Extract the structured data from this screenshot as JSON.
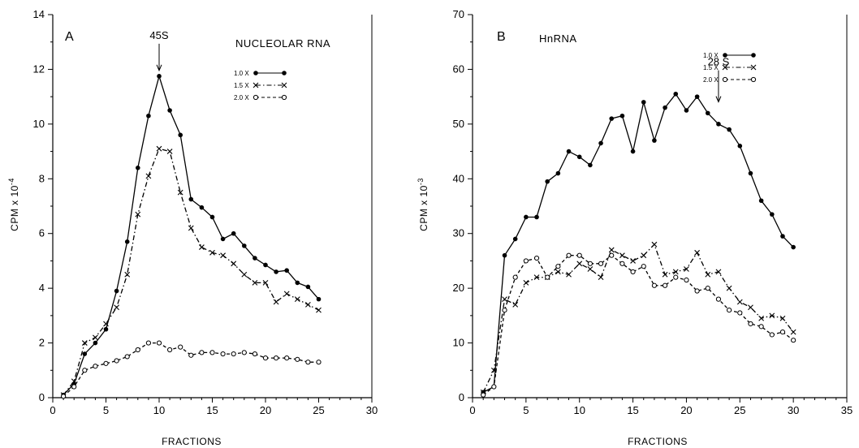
{
  "chart_data": [
    {
      "type": "line",
      "panel_label": "A",
      "title": "NUCLEOLAR RNA",
      "xlabel": "FRACTIONS",
      "ylabel": "CPM x 10",
      "ylabel_exponent": "-4",
      "xlim": [
        0,
        30
      ],
      "ylim": [
        0,
        14
      ],
      "x_ticks": [
        "0",
        "5",
        "10",
        "15",
        "20",
        "25",
        "30"
      ],
      "y_ticks": [
        "0",
        "2",
        "4",
        "6",
        "8",
        "10",
        "12",
        "14"
      ],
      "grid": false,
      "legend_position": "top-right",
      "annotation": {
        "text": "45S",
        "x": 10,
        "y": 11.75
      },
      "series": [
        {
          "name": "1.0 X",
          "marker": "filled-circle",
          "line_style": "solid",
          "x": [
            1,
            2,
            3,
            4,
            5,
            6,
            7,
            8,
            9,
            10,
            11,
            12,
            13,
            14,
            15,
            16,
            17,
            18,
            19,
            20,
            21,
            22,
            23,
            24,
            25
          ],
          "y": [
            0.1,
            0.5,
            1.6,
            2.0,
            2.5,
            3.9,
            5.7,
            8.4,
            10.3,
            11.75,
            10.5,
            9.6,
            7.25,
            6.95,
            6.6,
            5.8,
            6.0,
            5.55,
            5.1,
            4.85,
            4.6,
            4.65,
            4.2,
            4.05,
            3.6
          ]
        },
        {
          "name": "1.5 X",
          "marker": "x",
          "line_style": "dash-dot",
          "x": [
            1,
            2,
            3,
            4,
            5,
            6,
            7,
            8,
            9,
            10,
            11,
            12,
            13,
            14,
            15,
            16,
            17,
            18,
            19,
            20,
            21,
            22,
            23,
            24,
            25
          ],
          "y": [
            0.1,
            0.6,
            2.0,
            2.2,
            2.7,
            3.3,
            4.5,
            6.7,
            8.1,
            9.1,
            9.0,
            7.5,
            6.2,
            5.5,
            5.3,
            5.2,
            4.9,
            4.5,
            4.2,
            4.2,
            3.5,
            3.8,
            3.6,
            3.4,
            3.2
          ]
        },
        {
          "name": "2.0 X",
          "marker": "open-circle",
          "line_style": "dashed",
          "x": [
            1,
            2,
            3,
            4,
            5,
            6,
            7,
            8,
            9,
            10,
            11,
            12,
            13,
            14,
            15,
            16,
            17,
            18,
            19,
            20,
            21,
            22,
            23,
            24,
            25
          ],
          "y": [
            0.05,
            0.4,
            1.0,
            1.15,
            1.25,
            1.35,
            1.5,
            1.75,
            2.0,
            2.0,
            1.75,
            1.85,
            1.55,
            1.65,
            1.65,
            1.6,
            1.6,
            1.65,
            1.6,
            1.45,
            1.45,
            1.45,
            1.4,
            1.3,
            1.3
          ]
        }
      ]
    },
    {
      "type": "line",
      "panel_label": "B",
      "title": "HnRNA",
      "xlabel": "FRACTIONS",
      "ylabel": "CPM x 10",
      "ylabel_exponent": "-3",
      "xlim": [
        0,
        35
      ],
      "ylim": [
        0,
        70
      ],
      "x_ticks": [
        "0",
        "5",
        "10",
        "15",
        "20",
        "25",
        "30",
        "35"
      ],
      "y_ticks": [
        "0",
        "10",
        "20",
        "30",
        "40",
        "50",
        "60",
        "70"
      ],
      "grid": false,
      "legend_position": "top-right",
      "annotation": {
        "text": "28 S",
        "x": 23,
        "y": 53
      },
      "series": [
        {
          "name": "1.0 X",
          "marker": "filled-circle",
          "line_style": "solid",
          "x": [
            1,
            2,
            3,
            4,
            5,
            6,
            7,
            8,
            9,
            10,
            11,
            12,
            13,
            14,
            15,
            16,
            17,
            18,
            19,
            20,
            21,
            22,
            23,
            24,
            25,
            26,
            27,
            28,
            29,
            30
          ],
          "y": [
            1,
            2,
            26,
            29,
            33,
            33,
            39.5,
            41,
            45,
            44,
            42.5,
            46.5,
            51,
            51.5,
            45,
            54,
            47,
            53,
            55.5,
            52.5,
            55,
            52,
            50,
            49,
            46,
            41,
            36,
            33.5,
            29.5,
            27.5
          ]
        },
        {
          "name": "1.5 X",
          "marker": "x",
          "line_style": "dash-dot",
          "x": [
            1,
            2,
            3,
            4,
            5,
            6,
            7,
            8,
            9,
            10,
            11,
            12,
            13,
            14,
            15,
            16,
            17,
            18,
            19,
            20,
            21,
            22,
            23,
            24,
            25,
            26,
            27,
            28,
            29,
            30
          ],
          "y": [
            1,
            5,
            18,
            17,
            21,
            22,
            22,
            23,
            22.5,
            24.5,
            23.5,
            22,
            27,
            26,
            25,
            26,
            28,
            22.5,
            23,
            23.5,
            26.5,
            22.5,
            23,
            20,
            17.5,
            16.5,
            14.5,
            15,
            14.5,
            12
          ]
        },
        {
          "name": "2.0 X",
          "marker": "open-circle",
          "line_style": "dashed",
          "x": [
            1,
            2,
            3,
            4,
            5,
            6,
            7,
            8,
            9,
            10,
            11,
            12,
            13,
            14,
            15,
            16,
            17,
            18,
            19,
            20,
            21,
            22,
            23,
            24,
            25,
            26,
            27,
            28,
            29,
            30
          ],
          "y": [
            0.5,
            2,
            16,
            22,
            25,
            25.5,
            22,
            24,
            26,
            26,
            24.5,
            24.5,
            26,
            24.5,
            23,
            24,
            20.5,
            20.5,
            22,
            21.5,
            19.5,
            20,
            18,
            16,
            15.5,
            13.5,
            13,
            11.5,
            12,
            10.5
          ]
        }
      ]
    }
  ]
}
